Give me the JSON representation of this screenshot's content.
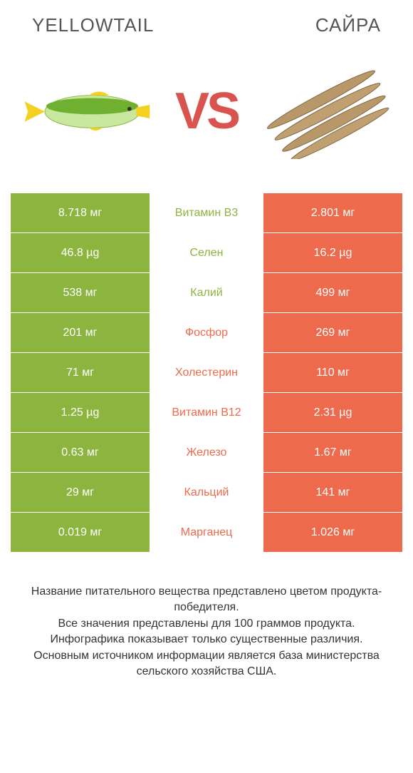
{
  "header": {
    "left_title": "YELLOWTAIL",
    "right_title": "САЙРА",
    "vs_label": "VS"
  },
  "colors": {
    "left_bg": "#8cb53f",
    "right_bg": "#ee6a4c",
    "vs_color": "#d9534f",
    "text_light": "#ffffff",
    "header_text": "#555555"
  },
  "footer_text": "Название питательного вещества представлено цветом продукта-победителя.\nВсе значения представлены для 100 граммов продукта.\nИнфографика показывает только существенные различия.\nОсновным источником информации является база министерства сельского хозяйства США.",
  "rows": [
    {
      "nutrient": "Витамин B3",
      "left": "8.718 мг",
      "right": "2.801 мг",
      "winner": "left"
    },
    {
      "nutrient": "Селен",
      "left": "46.8 µg",
      "right": "16.2 µg",
      "winner": "left"
    },
    {
      "nutrient": "Калий",
      "left": "538 мг",
      "right": "499 мг",
      "winner": "left"
    },
    {
      "nutrient": "Фосфор",
      "left": "201 мг",
      "right": "269 мг",
      "winner": "right"
    },
    {
      "nutrient": "Холестерин",
      "left": "71 мг",
      "right": "110 мг",
      "winner": "right"
    },
    {
      "nutrient": "Витамин B12",
      "left": "1.25 µg",
      "right": "2.31 µg",
      "winner": "right"
    },
    {
      "nutrient": "Железо",
      "left": "0.63 мг",
      "right": "1.67 мг",
      "winner": "right"
    },
    {
      "nutrient": "Кальций",
      "left": "29 мг",
      "right": "141 мг",
      "winner": "right"
    },
    {
      "nutrient": "Марганец",
      "left": "0.019 мг",
      "right": "1.026 мг",
      "winner": "right"
    }
  ]
}
